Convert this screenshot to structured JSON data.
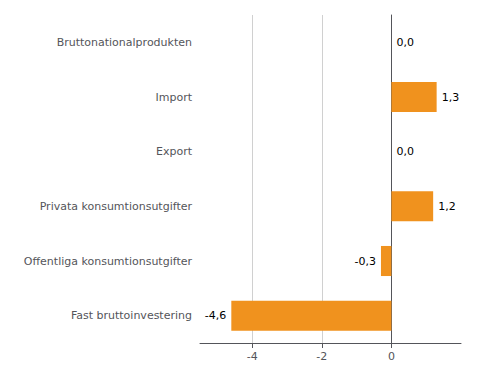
{
  "chart_data": {
    "type": "bar",
    "orientation": "horizontal",
    "categories": [
      "Fast bruttoinvestering",
      "Offentliga konsumtionsutgifter",
      "Privata konsumtionsutgifter",
      "Export",
      "Import",
      "Bruttonationalprodukten"
    ],
    "values": [
      -4.6,
      -0.3,
      1.2,
      0.0,
      1.3,
      0.0
    ],
    "value_labels": [
      "-4,6",
      "-0,3",
      "1,2",
      "0,0",
      "1,3",
      "0,0"
    ],
    "data_labels": true,
    "color": "#F0921E",
    "xlim": [
      -5.5,
      2.0
    ],
    "xticks": [
      -4,
      -2,
      0
    ],
    "grid": true
  }
}
